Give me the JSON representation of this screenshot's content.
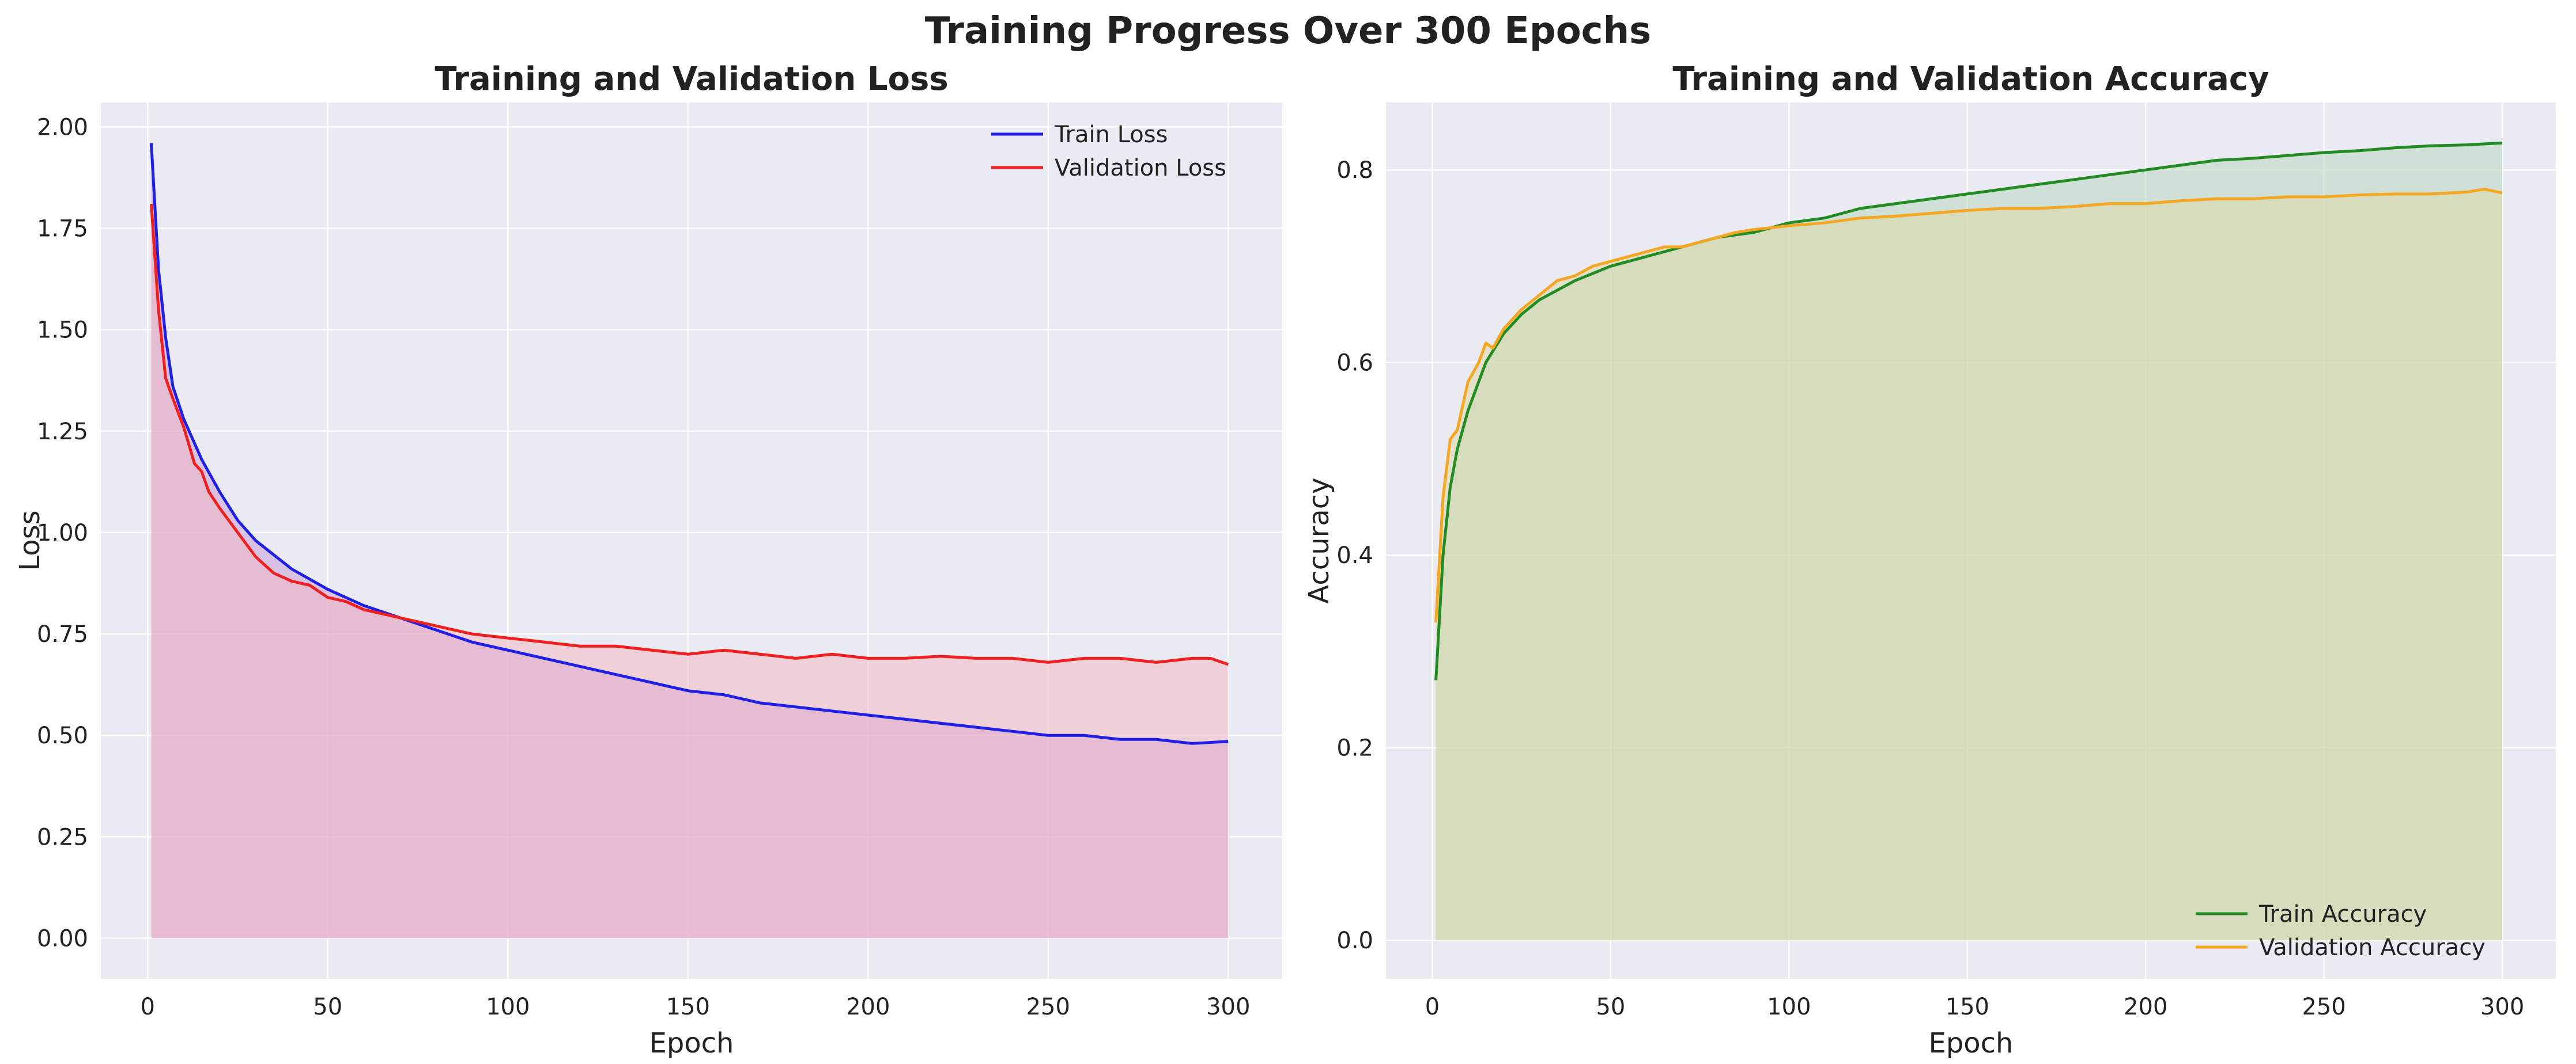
{
  "figure_title": "Training Progress Over 300 Epochs",
  "chart_data": [
    {
      "type": "line",
      "title": "Training and Validation Loss",
      "xlabel": "Epoch",
      "ylabel": "Loss",
      "xlim": [
        -13,
        315
      ],
      "ylim": [
        -0.1,
        2.06
      ],
      "xticks": [
        0,
        50,
        100,
        150,
        200,
        250,
        300
      ],
      "yticks": [
        0.0,
        0.25,
        0.5,
        0.75,
        1.0,
        1.25,
        1.5,
        1.75,
        2.0
      ],
      "ytick_labels": [
        "0.00",
        "0.25",
        "0.50",
        "0.75",
        "1.00",
        "1.25",
        "1.50",
        "1.75",
        "2.00"
      ],
      "grid": true,
      "legend_position": "upper right",
      "fill_to_zero": true,
      "series": [
        {
          "name": "Train Loss",
          "color": "#1f1fe6",
          "fill_color": "#c8a0d8",
          "x": [
            1,
            3,
            5,
            7,
            10,
            15,
            20,
            25,
            30,
            40,
            50,
            60,
            70,
            80,
            90,
            100,
            110,
            120,
            130,
            140,
            150,
            160,
            170,
            180,
            190,
            200,
            210,
            220,
            230,
            240,
            250,
            260,
            270,
            280,
            290,
            300
          ],
          "y": [
            1.96,
            1.65,
            1.48,
            1.36,
            1.28,
            1.18,
            1.1,
            1.03,
            0.98,
            0.91,
            0.86,
            0.82,
            0.79,
            0.76,
            0.73,
            0.71,
            0.69,
            0.67,
            0.65,
            0.63,
            0.61,
            0.6,
            0.58,
            0.57,
            0.56,
            0.55,
            0.54,
            0.53,
            0.52,
            0.51,
            0.5,
            0.5,
            0.49,
            0.49,
            0.48,
            0.485
          ]
        },
        {
          "name": "Validation Loss",
          "color": "#ee2020",
          "fill_color": "#f2b8c2",
          "x": [
            1,
            3,
            5,
            7,
            10,
            13,
            15,
            17,
            20,
            25,
            30,
            35,
            40,
            45,
            50,
            55,
            60,
            65,
            70,
            75,
            80,
            85,
            90,
            95,
            100,
            110,
            120,
            130,
            140,
            150,
            160,
            170,
            180,
            190,
            200,
            210,
            220,
            230,
            240,
            250,
            260,
            270,
            280,
            290,
            295,
            300
          ],
          "y": [
            1.81,
            1.55,
            1.38,
            1.33,
            1.26,
            1.17,
            1.15,
            1.1,
            1.06,
            1.0,
            0.94,
            0.9,
            0.88,
            0.87,
            0.84,
            0.83,
            0.81,
            0.8,
            0.79,
            0.78,
            0.77,
            0.76,
            0.75,
            0.745,
            0.74,
            0.73,
            0.72,
            0.72,
            0.71,
            0.7,
            0.71,
            0.7,
            0.69,
            0.7,
            0.69,
            0.69,
            0.695,
            0.69,
            0.69,
            0.68,
            0.69,
            0.69,
            0.68,
            0.69,
            0.69,
            0.675
          ]
        }
      ]
    },
    {
      "type": "line",
      "title": "Training and Validation Accuracy",
      "xlabel": "Epoch",
      "ylabel": "Accuracy",
      "xlim": [
        -13,
        315
      ],
      "ylim": [
        -0.04,
        0.87
      ],
      "xticks": [
        0,
        50,
        100,
        150,
        200,
        250,
        300
      ],
      "yticks": [
        0.0,
        0.2,
        0.4,
        0.6,
        0.8
      ],
      "ytick_labels": [
        "0.0",
        "0.2",
        "0.4",
        "0.6",
        "0.8"
      ],
      "grid": true,
      "legend_position": "lower right",
      "fill_to_zero": true,
      "series": [
        {
          "name": "Train Accuracy",
          "color": "#228b22",
          "fill_color": "#b8d8c0",
          "x": [
            1,
            3,
            5,
            7,
            10,
            15,
            20,
            25,
            30,
            40,
            50,
            60,
            70,
            80,
            90,
            100,
            110,
            120,
            130,
            140,
            150,
            160,
            170,
            180,
            190,
            200,
            210,
            220,
            230,
            240,
            250,
            260,
            270,
            280,
            290,
            300
          ],
          "y": [
            0.27,
            0.4,
            0.47,
            0.51,
            0.55,
            0.6,
            0.63,
            0.65,
            0.665,
            0.685,
            0.7,
            0.71,
            0.72,
            0.73,
            0.735,
            0.745,
            0.75,
            0.76,
            0.765,
            0.77,
            0.775,
            0.78,
            0.785,
            0.79,
            0.795,
            0.8,
            0.805,
            0.81,
            0.812,
            0.815,
            0.818,
            0.82,
            0.823,
            0.825,
            0.826,
            0.828
          ]
        },
        {
          "name": "Validation Accuracy",
          "color": "#f5a623",
          "fill_color": "#dcd8a8",
          "x": [
            1,
            3,
            5,
            7,
            10,
            13,
            15,
            17,
            20,
            25,
            30,
            35,
            40,
            45,
            50,
            55,
            60,
            65,
            70,
            75,
            80,
            85,
            90,
            95,
            100,
            110,
            120,
            130,
            140,
            150,
            160,
            170,
            180,
            190,
            200,
            210,
            220,
            230,
            240,
            250,
            260,
            270,
            280,
            290,
            295,
            300
          ],
          "y": [
            0.33,
            0.46,
            0.52,
            0.53,
            0.58,
            0.6,
            0.62,
            0.615,
            0.635,
            0.655,
            0.67,
            0.685,
            0.69,
            0.7,
            0.705,
            0.71,
            0.715,
            0.72,
            0.72,
            0.725,
            0.73,
            0.735,
            0.738,
            0.74,
            0.742,
            0.745,
            0.75,
            0.752,
            0.755,
            0.758,
            0.76,
            0.76,
            0.762,
            0.765,
            0.765,
            0.768,
            0.77,
            0.77,
            0.772,
            0.772,
            0.774,
            0.775,
            0.775,
            0.777,
            0.78,
            0.776
          ]
        }
      ]
    }
  ]
}
